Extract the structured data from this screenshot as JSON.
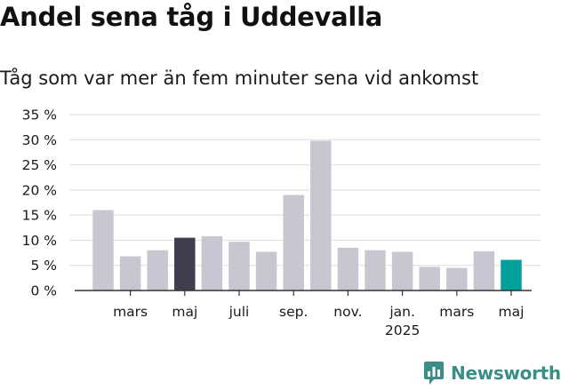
{
  "chart_data": {
    "type": "bar",
    "title": "Andel sena tåg i Uddevalla",
    "subtitle": "Tåg som var mer än fem minuter sena vid ankomst",
    "xlabel": "",
    "ylabel": "",
    "ylim": [
      0,
      35
    ],
    "yticks": [
      0,
      5,
      10,
      15,
      20,
      25,
      30,
      35
    ],
    "ytick_labels": [
      "0 %",
      "5 %",
      "10 %",
      "15 %",
      "20 %",
      "25 %",
      "30 %",
      "35 %"
    ],
    "grid": true,
    "values": [
      16,
      6.8,
      8,
      10.5,
      10.8,
      9.7,
      7.7,
      19,
      29.8,
      8.5,
      8,
      7.7,
      4.7,
      4.5,
      7.8,
      6.1
    ],
    "colors": [
      "#c8c7d1",
      "#c8c7d1",
      "#c8c7d1",
      "#3f3e4f",
      "#c8c7d1",
      "#c8c7d1",
      "#c8c7d1",
      "#c8c7d1",
      "#c8c7d1",
      "#c8c7d1",
      "#c8c7d1",
      "#c8c7d1",
      "#c8c7d1",
      "#c8c7d1",
      "#c8c7d1",
      "#00a19a"
    ],
    "x_ticks": [
      {
        "index": 1.5,
        "label": "mars",
        "sublabel": ""
      },
      {
        "index": 3.5,
        "label": "maj",
        "sublabel": ""
      },
      {
        "index": 5.5,
        "label": "juli",
        "sublabel": ""
      },
      {
        "index": 7.5,
        "label": "sep.",
        "sublabel": ""
      },
      {
        "index": 9.5,
        "label": "nov.",
        "sublabel": ""
      },
      {
        "index": 11.5,
        "label": "jan.",
        "sublabel": "2025"
      },
      {
        "index": 13.5,
        "label": "mars",
        "sublabel": ""
      },
      {
        "index": 15.5,
        "label": "maj",
        "sublabel": ""
      }
    ]
  },
  "branding": {
    "name": "Newsworthy",
    "icon": "newsworthy-logo-icon",
    "color": "#3b8d88"
  },
  "colors": {
    "default_bar": "#c8c7d1",
    "highlight_dark": "#3f3e4f",
    "highlight_accent": "#00a19a",
    "grid": "#dedede",
    "axis": "#333333"
  }
}
